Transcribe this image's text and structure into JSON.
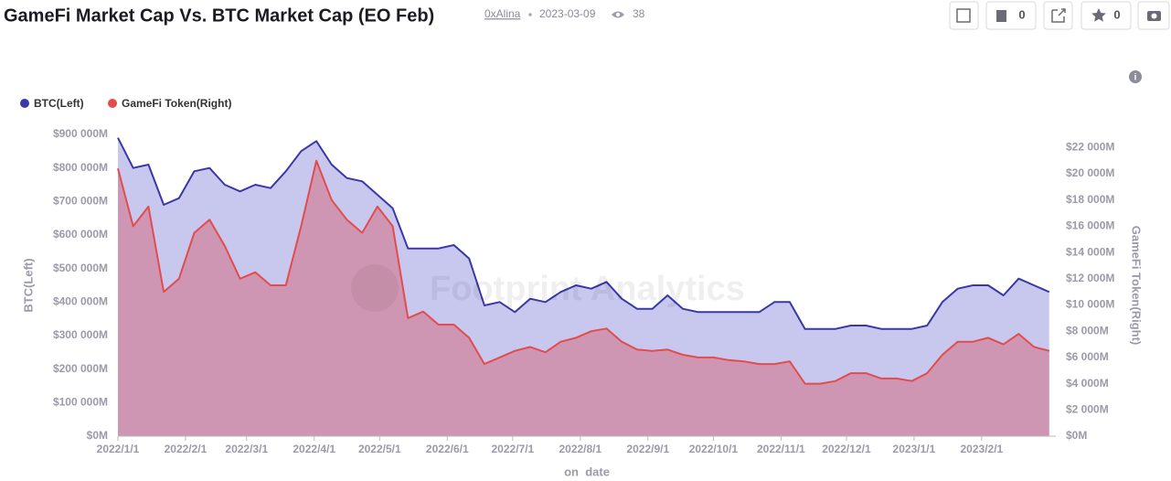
{
  "header": {
    "title": "GameFi Market Cap Vs. BTC Market Cap (EO Feb)",
    "author": "0xAlina",
    "date": "2023-03-09",
    "views": 38,
    "comments": 0,
    "stars": 0
  },
  "chart_data": {
    "type": "area",
    "watermark": "Footprint Analytics",
    "xlabel": "on_date",
    "ylabel": "BTC(Left)",
    "y2label": "GameFi Token(Right)",
    "legend": "top-left",
    "x": [
      "2022/1/1",
      "2022/1/8",
      "2022/1/15",
      "2022/1/22",
      "2022/1/29",
      "2022/2/5",
      "2022/2/12",
      "2022/2/19",
      "2022/2/26",
      "2022/3/5",
      "2022/3/12",
      "2022/3/19",
      "2022/3/26",
      "2022/4/2",
      "2022/4/9",
      "2022/4/16",
      "2022/4/23",
      "2022/4/30",
      "2022/5/7",
      "2022/5/14",
      "2022/5/21",
      "2022/5/28",
      "2022/6/4",
      "2022/6/11",
      "2022/6/18",
      "2022/6/25",
      "2022/7/2",
      "2022/7/9",
      "2022/7/16",
      "2022/7/23",
      "2022/7/30",
      "2022/8/6",
      "2022/8/13",
      "2022/8/20",
      "2022/8/27",
      "2022/9/3",
      "2022/9/10",
      "2022/9/17",
      "2022/9/24",
      "2022/10/1",
      "2022/10/8",
      "2022/10/15",
      "2022/10/22",
      "2022/10/29",
      "2022/11/5",
      "2022/11/12",
      "2022/11/19",
      "2022/11/26",
      "2022/12/3",
      "2022/12/10",
      "2022/12/17",
      "2022/12/24",
      "2022/12/31",
      "2023/1/7",
      "2023/1/14",
      "2023/1/21",
      "2023/1/28",
      "2023/2/4",
      "2023/2/11",
      "2023/2/18",
      "2023/2/25",
      "2023/3/4"
    ],
    "series": [
      {
        "name": "BTC(Left)",
        "color": "#3a37a8",
        "fill": "#c8c8ef",
        "axis": "y",
        "values": [
          890000,
          800000,
          810000,
          690000,
          710000,
          790000,
          800000,
          750000,
          730000,
          750000,
          740000,
          790000,
          850000,
          880000,
          810000,
          770000,
          760000,
          720000,
          680000,
          560000,
          560000,
          560000,
          570000,
          530000,
          390000,
          400000,
          370000,
          410000,
          400000,
          430000,
          450000,
          440000,
          460000,
          410000,
          380000,
          380000,
          420000,
          380000,
          370000,
          370000,
          370000,
          370000,
          370000,
          400000,
          400000,
          320000,
          320000,
          320000,
          330000,
          330000,
          320000,
          320000,
          320000,
          330000,
          400000,
          440000,
          450000,
          450000,
          420000,
          470000,
          450000,
          430000
        ]
      },
      {
        "name": "GameFi Token(Right)",
        "color": "#e34c4c",
        "fill": "rgba(214,110,130,0.55)",
        "axis": "y2",
        "values": [
          20400,
          16000,
          17500,
          11000,
          12000,
          15500,
          16500,
          14500,
          12000,
          12500,
          11500,
          11500,
          16000,
          21000,
          18000,
          16500,
          15500,
          17500,
          16000,
          9000,
          9500,
          8500,
          8500,
          7500,
          5500,
          6000,
          6500,
          6800,
          6400,
          7200,
          7500,
          8000,
          8200,
          7200,
          6600,
          6500,
          6600,
          6200,
          6000,
          6000,
          5800,
          5700,
          5500,
          5500,
          5700,
          4000,
          4000,
          4200,
          4800,
          4800,
          4400,
          4400,
          4200,
          4800,
          6200,
          7200,
          7200,
          7500,
          7000,
          7800,
          6800,
          6500
        ]
      }
    ],
    "xlim": [
      "2022/1/1",
      "2023/3/7"
    ],
    "xticks": [
      "2022/1/1",
      "2022/2/1",
      "2022/3/1",
      "2022/4/1",
      "2022/5/1",
      "2022/6/1",
      "2022/7/1",
      "2022/8/1",
      "2022/9/1",
      "2022/10/1",
      "2022/11/1",
      "2022/12/1",
      "2023/1/1",
      "2023/2/1"
    ],
    "ylim": [
      0,
      900000
    ],
    "yticks": [
      {
        "value": 0,
        "label": "$0M"
      },
      {
        "value": 100000,
        "label": "$100 000M"
      },
      {
        "value": 200000,
        "label": "$200 000M"
      },
      {
        "value": 300000,
        "label": "$300 000M"
      },
      {
        "value": 400000,
        "label": "$400 000M"
      },
      {
        "value": 500000,
        "label": "$500 000M"
      },
      {
        "value": 600000,
        "label": "$600 000M"
      },
      {
        "value": 700000,
        "label": "$700 000M"
      },
      {
        "value": 800000,
        "label": "$800 000M"
      },
      {
        "value": 900000,
        "label": "$900 000M"
      }
    ],
    "y2lim": [
      0,
      23000
    ],
    "y2ticks": [
      {
        "value": 0,
        "label": "$0M"
      },
      {
        "value": 2000,
        "label": "$2 000M"
      },
      {
        "value": 4000,
        "label": "$4 000M"
      },
      {
        "value": 6000,
        "label": "$6 000M"
      },
      {
        "value": 8000,
        "label": "$8 000M"
      },
      {
        "value": 10000,
        "label": "$10 000M"
      },
      {
        "value": 12000,
        "label": "$12 000M"
      },
      {
        "value": 14000,
        "label": "$14 000M"
      },
      {
        "value": 16000,
        "label": "$16 000M"
      },
      {
        "value": 18000,
        "label": "$18 000M"
      },
      {
        "value": 20000,
        "label": "$20 000M"
      },
      {
        "value": 22000,
        "label": "$22 000M"
      }
    ]
  }
}
